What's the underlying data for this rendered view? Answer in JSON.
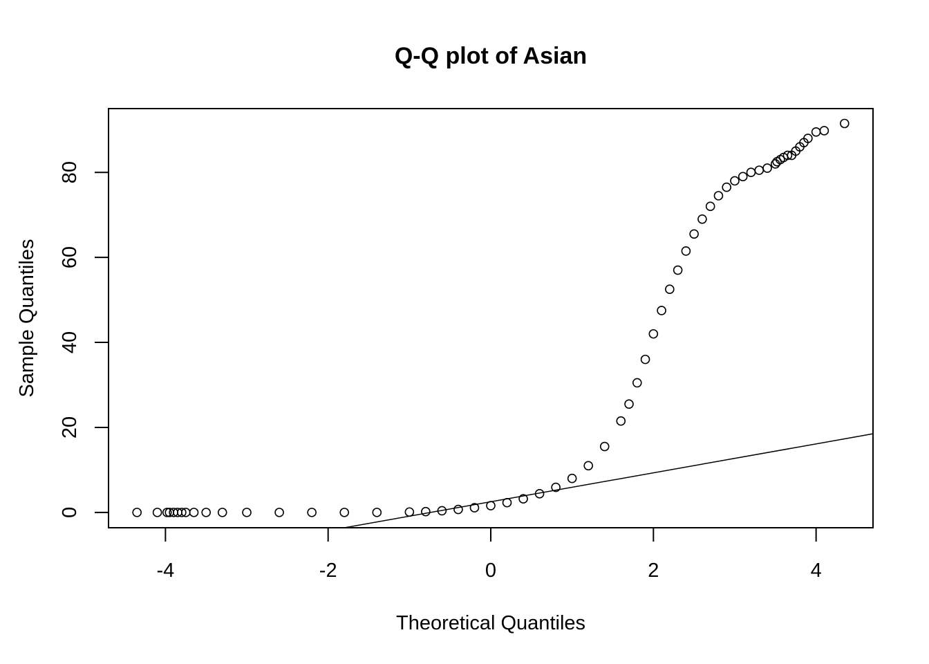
{
  "chart_data": {
    "type": "scatter",
    "title": "Q-Q plot of Asian",
    "xlabel": "Theoretical Quantiles",
    "ylabel": "Sample Quantiles",
    "xlim": [
      -4.7,
      4.7
    ],
    "ylim": [
      -3.6,
      95
    ],
    "x_ticks": [
      -4,
      -2,
      0,
      2,
      4
    ],
    "y_ticks": [
      0,
      20,
      40,
      60,
      80
    ],
    "grid": false,
    "legend": "none",
    "point_color": "#000000",
    "series": [
      {
        "values_x": [
          -4.35,
          -4.1,
          -3.98,
          -3.95,
          -3.9,
          -3.85,
          -3.8,
          -3.75,
          -3.65,
          -3.5,
          -3.3,
          -3.0,
          -2.6,
          -2.2,
          -1.8,
          -1.4,
          -1.0,
          -0.8,
          -0.6,
          -0.4,
          -0.2,
          0.0,
          0.2,
          0.4,
          0.6,
          0.8,
          1.0,
          1.2,
          1.4,
          1.6,
          1.7,
          1.8,
          1.9,
          2.0,
          2.1,
          2.2,
          2.3,
          2.4,
          2.5,
          2.6,
          2.7,
          2.8,
          2.9,
          3.0,
          3.1,
          3.2,
          3.3,
          3.4,
          3.5,
          3.52,
          3.56,
          3.6,
          3.65,
          3.7,
          3.75,
          3.8,
          3.85,
          3.9,
          4.0,
          4.1,
          4.35
        ],
        "values_y": [
          0,
          0,
          0,
          0,
          0,
          0,
          0,
          0,
          0,
          0,
          0,
          0,
          0,
          0,
          0,
          0,
          0.1,
          0.2,
          0.4,
          0.7,
          1.1,
          1.6,
          2.3,
          3.2,
          4.4,
          5.9,
          8.0,
          11.0,
          15.5,
          21.5,
          25.5,
          30.5,
          36.0,
          42.0,
          47.5,
          52.5,
          57.0,
          61.5,
          65.5,
          69.0,
          72.0,
          74.5,
          76.5,
          78.0,
          79.0,
          80.0,
          80.5,
          81.0,
          82.0,
          82.5,
          83.0,
          83.5,
          84.0,
          84.0,
          85.0,
          86.0,
          87.0,
          88.0,
          89.5,
          89.8,
          91.5
        ]
      }
    ],
    "reference_line": {
      "x": [
        -1.8,
        4.7
      ],
      "y": [
        -3.6,
        18.5
      ]
    }
  }
}
